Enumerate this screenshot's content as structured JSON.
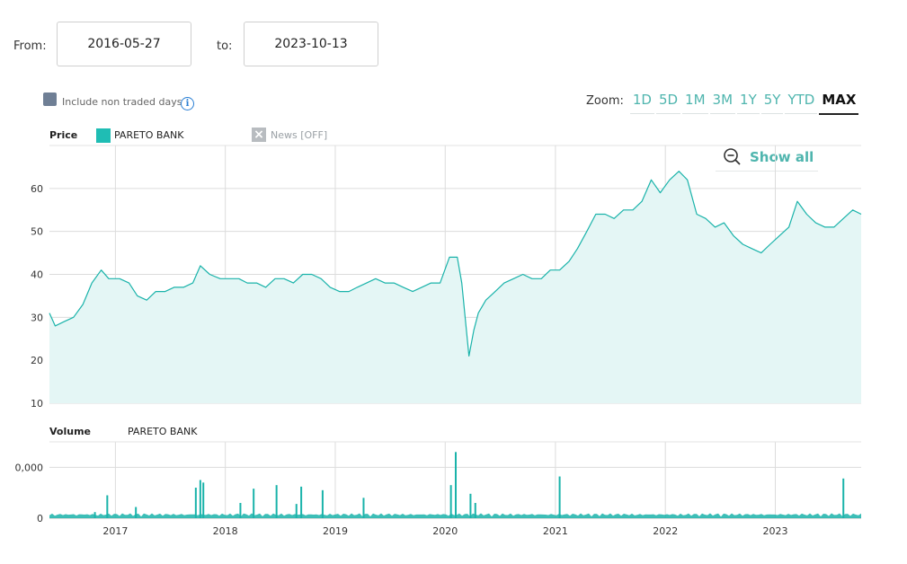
{
  "date_range": {
    "from_label": "From:",
    "from_value": "2016-05-27",
    "to_label": "to:",
    "to_value": "2023-10-13"
  },
  "options": {
    "include_non_traded_label": "Include non traded days",
    "include_non_traded_checked": true
  },
  "zoom": {
    "label": "Zoom:",
    "buttons": [
      "1D",
      "5D",
      "1M",
      "3M",
      "1Y",
      "5Y",
      "YTD",
      "MAX"
    ],
    "active": "MAX"
  },
  "show_all_label": "Show all",
  "price_panel": {
    "title": "Price",
    "series_name": "PARETO BANK",
    "news_label": "News [OFF]"
  },
  "volume_panel": {
    "title": "Volume",
    "series_name": "PARETO BANK"
  },
  "colors": {
    "line": "#1ab3aa",
    "fill": "#e4f6f5",
    "accent": "#4fb5ae",
    "swatch": "#1fbdb4"
  },
  "chart_data": [
    {
      "type": "area",
      "ylim": [
        10,
        70
      ],
      "yticks": [
        10,
        20,
        30,
        40,
        50,
        60
      ],
      "xticks": [
        "2017",
        "2018",
        "2019",
        "2020",
        "2021",
        "2022",
        "2023"
      ],
      "grid": true,
      "x": [
        "2016-05-27",
        "2016-06-15",
        "2016-07-15",
        "2016-08-15",
        "2016-09-15",
        "2016-10-15",
        "2016-11-15",
        "2016-12-10",
        "2017-01-15",
        "2017-02-15",
        "2017-03-15",
        "2017-04-15",
        "2017-05-15",
        "2017-06-15",
        "2017-07-15",
        "2017-08-15",
        "2017-09-15",
        "2017-10-10",
        "2017-11-10",
        "2017-12-15",
        "2018-01-15",
        "2018-02-15",
        "2018-03-15",
        "2018-04-15",
        "2018-05-15",
        "2018-06-15",
        "2018-07-15",
        "2018-08-15",
        "2018-09-15",
        "2018-10-15",
        "2018-11-15",
        "2018-12-15",
        "2019-01-15",
        "2019-02-15",
        "2019-03-15",
        "2019-04-15",
        "2019-05-15",
        "2019-06-15",
        "2019-07-15",
        "2019-08-15",
        "2019-09-15",
        "2019-10-15",
        "2019-11-15",
        "2019-12-15",
        "2020-01-15",
        "2020-02-10",
        "2020-02-25",
        "2020-03-10",
        "2020-03-20",
        "2020-04-05",
        "2020-04-20",
        "2020-05-15",
        "2020-06-15",
        "2020-07-15",
        "2020-08-15",
        "2020-09-15",
        "2020-10-15",
        "2020-11-15",
        "2020-12-15",
        "2021-01-15",
        "2021-02-15",
        "2021-03-15",
        "2021-04-15",
        "2021-05-15",
        "2021-06-15",
        "2021-07-15",
        "2021-08-15",
        "2021-09-15",
        "2021-10-15",
        "2021-11-15",
        "2021-12-15",
        "2022-01-15",
        "2022-02-15",
        "2022-03-15",
        "2022-04-15",
        "2022-05-15",
        "2022-06-15",
        "2022-07-15",
        "2022-08-15",
        "2022-09-15",
        "2022-10-15",
        "2022-11-15",
        "2022-12-15",
        "2023-01-15",
        "2023-02-15",
        "2023-03-15",
        "2023-04-15",
        "2023-05-15",
        "2023-06-15",
        "2023-07-15",
        "2023-08-15",
        "2023-09-15",
        "2023-10-13"
      ],
      "y": [
        31,
        28,
        29,
        30,
        33,
        38,
        41,
        39,
        39,
        38,
        35,
        34,
        36,
        36,
        37,
        37,
        38,
        42,
        40,
        39,
        39,
        39,
        38,
        38,
        37,
        39,
        39,
        38,
        40,
        40,
        39,
        37,
        36,
        36,
        37,
        38,
        39,
        38,
        38,
        37,
        36,
        37,
        38,
        38,
        44,
        44,
        38,
        28,
        21,
        27,
        31,
        34,
        36,
        38,
        39,
        40,
        39,
        39,
        41,
        41,
        43,
        46,
        50,
        54,
        54,
        53,
        55,
        55,
        57,
        62,
        59,
        62,
        64,
        62,
        54,
        53,
        51,
        52,
        49,
        47,
        46,
        45,
        47,
        49,
        51,
        57,
        54,
        52,
        51,
        51,
        53,
        55,
        54
      ]
    },
    {
      "type": "bar",
      "ylim": [
        0,
        150000
      ],
      "yticks": [
        "0",
        "0,000"
      ],
      "x": [
        "2016-10-25",
        "2016-12-05",
        "2017-03-10",
        "2017-09-25",
        "2017-10-10",
        "2017-10-20",
        "2018-02-20",
        "2018-04-05",
        "2018-06-20",
        "2018-08-25",
        "2018-09-10",
        "2018-11-20",
        "2019-04-05",
        "2020-01-20",
        "2020-02-05",
        "2020-03-25",
        "2020-04-10",
        "2021-01-15",
        "2023-08-15"
      ],
      "values": [
        12000,
        45000,
        22000,
        60000,
        75000,
        70000,
        30000,
        58000,
        65000,
        28000,
        62000,
        55000,
        40000,
        65000,
        130000,
        48000,
        30000,
        82000,
        78000
      ]
    }
  ]
}
